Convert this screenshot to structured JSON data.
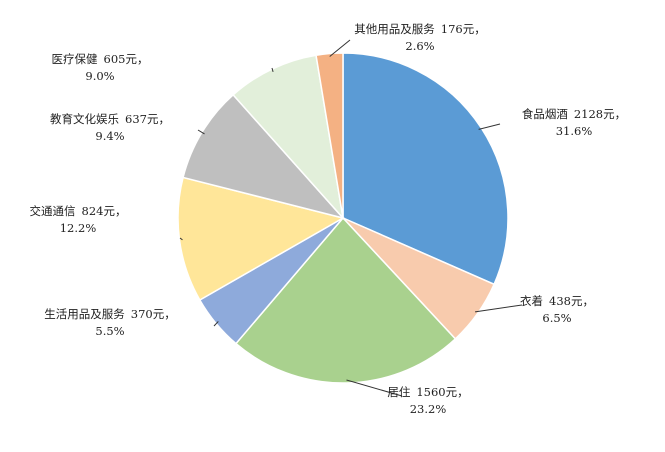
{
  "chart_data": {
    "type": "pie",
    "categories": [
      "食品烟酒",
      "衣着",
      "居住",
      "生活用品及服务",
      "交通通信",
      "教育文化娱乐",
      "医疗保健",
      "其他用品及服务"
    ],
    "values": [
      2128,
      438,
      1560,
      370,
      824,
      637,
      605,
      176
    ],
    "value_labels": [
      "2128元，",
      "438元，",
      "1560元，",
      "370元，",
      "824元，",
      "637元，",
      "605元，",
      "176元，"
    ],
    "percents": [
      31.6,
      6.5,
      23.2,
      5.5,
      12.2,
      9.4,
      9.0,
      2.6
    ],
    "percent_labels": [
      "31.6%",
      "6.5%",
      "23.2%",
      "5.5%",
      "12.2%",
      "9.4%",
      "9.0%",
      "2.6%"
    ],
    "colors": [
      "#5b9bd5",
      "#f8cbad",
      "#a9d18e",
      "#8eaadb",
      "#ffe699",
      "#bfbfbf",
      "#e2efda",
      "#f4b183"
    ]
  }
}
